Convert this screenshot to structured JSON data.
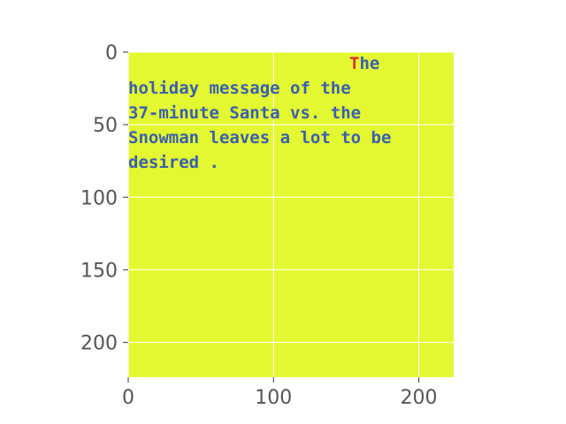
{
  "chart_data": {
    "type": "heatmap",
    "title": "",
    "xlabel": "",
    "ylabel": "",
    "xlim": [
      0,
      224
    ],
    "ylim": [
      224,
      0
    ],
    "xticks": [
      0,
      100,
      200
    ],
    "yticks": [
      0,
      50,
      100,
      150,
      200
    ],
    "grid": true,
    "image_background": "#e3f830",
    "grid_color": "#ffffff",
    "tick_color": "#555555",
    "text_color": "#3a5fb0",
    "highlight_color": "#e0302a",
    "image_text_lines": [
      "The",
      "holiday message of the",
      "37-minute Santa vs. the",
      "Snowman leaves a lot to be",
      "desired ."
    ]
  }
}
